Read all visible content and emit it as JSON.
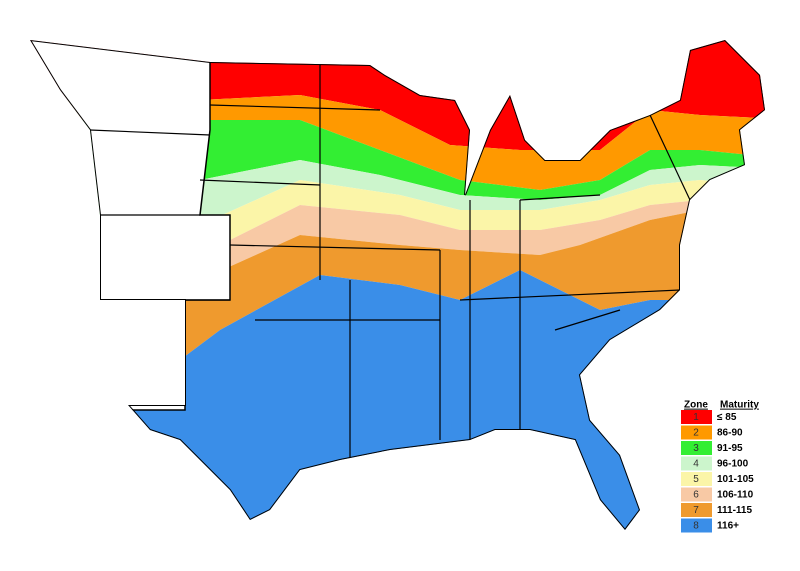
{
  "legend": {
    "zone_header": "Zone",
    "maturity_header": "Maturity",
    "entries": [
      {
        "zone": 1,
        "maturity": "≤ 85",
        "color": "#ff0000"
      },
      {
        "zone": 2,
        "maturity": "86-90",
        "color": "#ff9900"
      },
      {
        "zone": 3,
        "maturity": "91-95",
        "color": "#33ee33"
      },
      {
        "zone": 4,
        "maturity": "96-100",
        "color": "#ccf5cc"
      },
      {
        "zone": 5,
        "maturity": "101-105",
        "color": "#fbf5a8"
      },
      {
        "zone": 6,
        "maturity": "106-110",
        "color": "#f8c9a5"
      },
      {
        "zone": 7,
        "maturity": "111-115",
        "color": "#ef9a2e"
      },
      {
        "zone": 8,
        "maturity": "116+",
        "color": "#3a8ee8"
      }
    ]
  }
}
